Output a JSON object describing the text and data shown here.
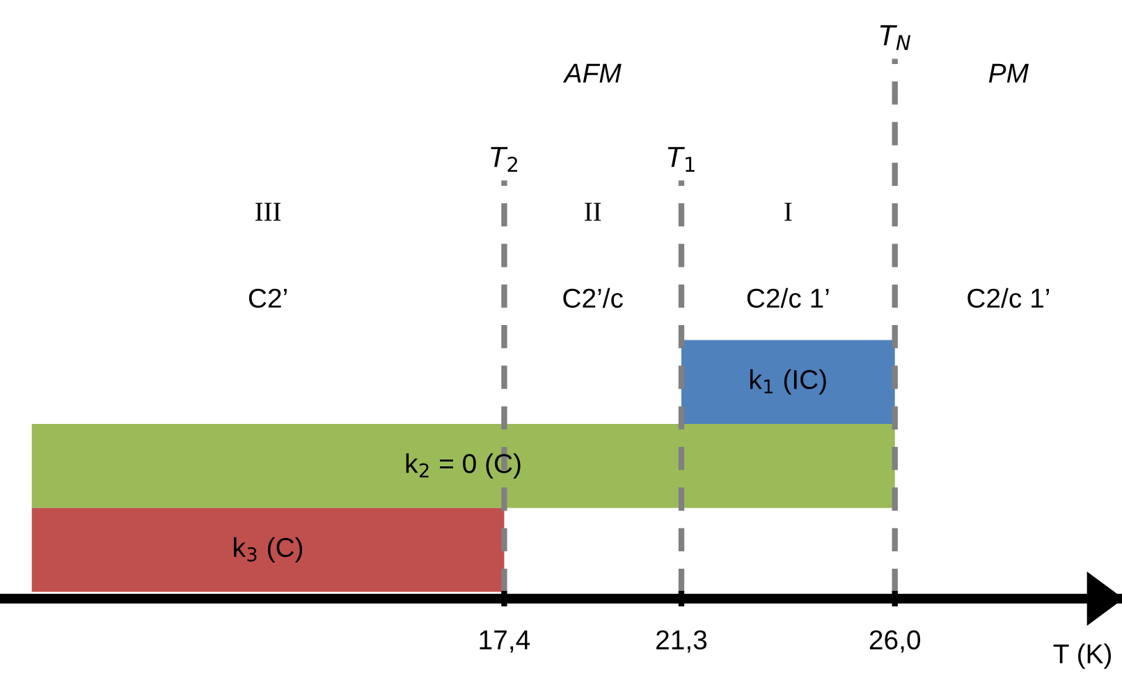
{
  "chart_data": {
    "type": "bar",
    "orientation": "horizontal",
    "xlabel": "T (K)",
    "categories": [
      "k$_{1}$ (IC)",
      "k$_{2}$ = 0 (C)",
      "k$_{3}$ (C)"
    ],
    "values": [
      4.7,
      19,
      10.4
    ],
    "base": [
      21.3,
      7,
      7
    ],
    "colors": [
      "#4f81bd",
      "#9bbb59",
      "#c0504d"
    ],
    "xlim": [
      6.3,
      31
    ],
    "xticks": [
      {
        "value": 17.4,
        "label": "17,4"
      },
      {
        "value": 21.3,
        "label": "21,3"
      },
      {
        "value": 26.0,
        "label": "26,0"
      }
    ],
    "ref_lines": [
      {
        "axis": "x",
        "value": 17.4,
        "label": "T$_{2}$",
        "color": "#808080",
        "line_style": "dashed"
      },
      {
        "axis": "x",
        "value": 21.3,
        "label": "T$_{1}$",
        "color": "#808080",
        "line_style": "dashed"
      },
      {
        "axis": "x",
        "value": 26.0,
        "label": "T$_{N}$",
        "color": "#808080",
        "line_style": "dashed"
      }
    ],
    "annotations": [
      "AFM",
      "PM",
      "III",
      "II",
      "I",
      "C2’",
      "C2’/c",
      "C2/c 1’",
      "C2/c 1’"
    ],
    "grid": false,
    "legend": false
  }
}
